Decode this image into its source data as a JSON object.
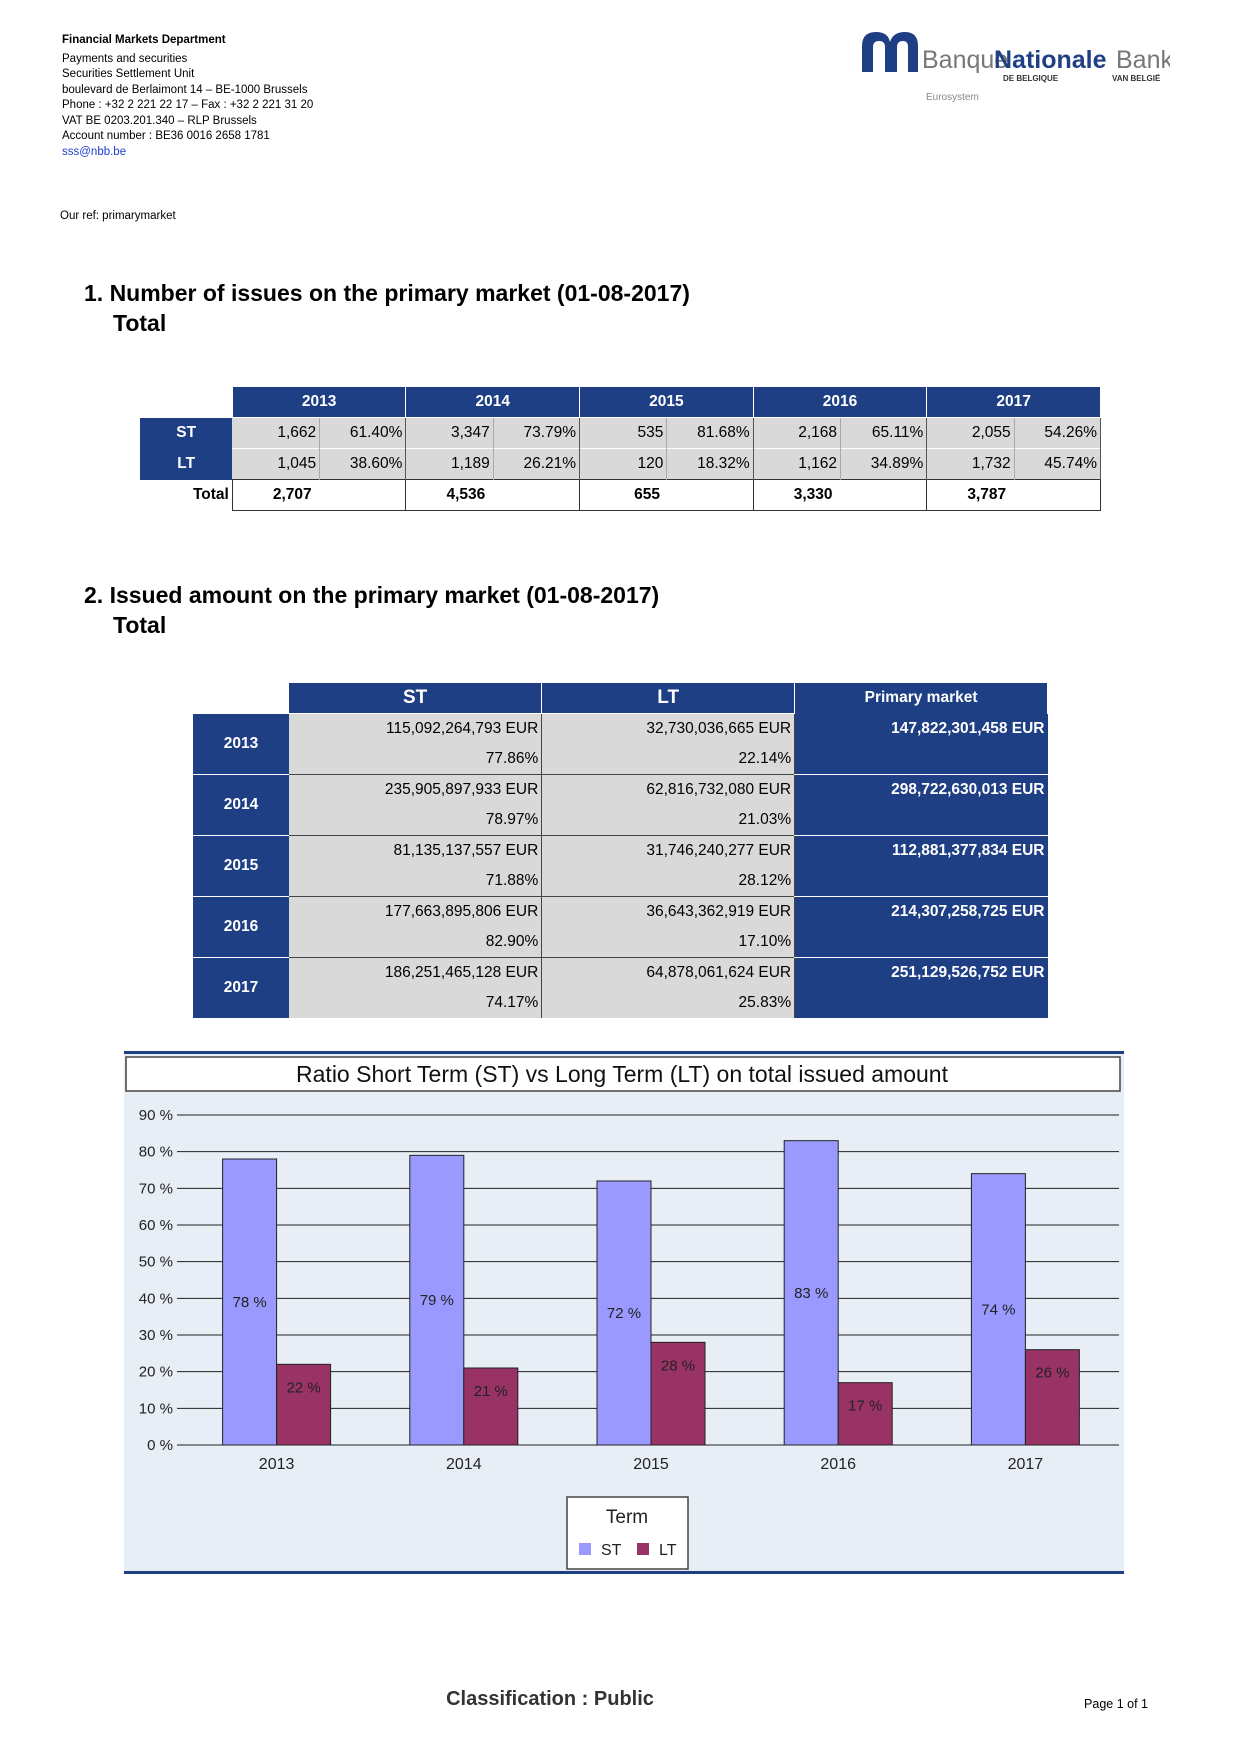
{
  "header": {
    "department": "Financial Markets Department",
    "lines": [
      "Payments and securities",
      "Securities Settlement Unit",
      "boulevard de Berlaimont 14 – BE-1000 Brussels",
      "Phone : +32 2 221 22 17 – Fax : +32 2 221 31 20",
      "VAT BE 0203.201.340 – RLP Brussels",
      "Account number : BE36 0016 2658 1781"
    ],
    "email": "sss@nbb.be"
  },
  "logo": {
    "banque": "Banque",
    "nationale": "Nationale",
    "bank": "Bank",
    "de_belgique": "DE BELGIQUE",
    "van_belgie": "VAN BELGIË",
    "eurosystem": "Eurosystem"
  },
  "ref": "Our ref: primarymarket",
  "section1": {
    "title": "1. Number of issues on the primary market (01-08-2017)",
    "subtitle": "Total",
    "years": [
      "2013",
      "2014",
      "2015",
      "2016",
      "2017"
    ],
    "rows": [
      {
        "label": "ST",
        "cells": [
          [
            "1,662",
            "61.40%"
          ],
          [
            "3,347",
            "73.79%"
          ],
          [
            "535",
            "81.68%"
          ],
          [
            "2,168",
            "65.11%"
          ],
          [
            "2,055",
            "54.26%"
          ]
        ]
      },
      {
        "label": "LT",
        "cells": [
          [
            "1,045",
            "38.60%"
          ],
          [
            "1,189",
            "26.21%"
          ],
          [
            "120",
            "18.32%"
          ],
          [
            "1,162",
            "34.89%"
          ],
          [
            "1,732",
            "45.74%"
          ]
        ]
      }
    ],
    "total_label": "Total",
    "totals": [
      "2,707",
      "4,536",
      "655",
      "3,330",
      "3,787"
    ]
  },
  "section2": {
    "title": "2. Issued amount on the primary market (01-08-2017)",
    "subtitle": "Total",
    "headers": [
      "ST",
      "LT",
      "Primary market"
    ],
    "rows": [
      {
        "year": "2013",
        "st": "115,092,264,793 EUR",
        "st_pct": "77.86%",
        "lt": "32,730,036,665 EUR",
        "lt_pct": "22.14%",
        "pm": "147,822,301,458 EUR"
      },
      {
        "year": "2014",
        "st": "235,905,897,933 EUR",
        "st_pct": "78.97%",
        "lt": "62,816,732,080 EUR",
        "lt_pct": "21.03%",
        "pm": "298,722,630,013 EUR"
      },
      {
        "year": "2015",
        "st": "81,135,137,557 EUR",
        "st_pct": "71.88%",
        "lt": "31,746,240,277 EUR",
        "lt_pct": "28.12%",
        "pm": "112,881,377,834 EUR"
      },
      {
        "year": "2016",
        "st": "177,663,895,806 EUR",
        "st_pct": "82.90%",
        "lt": "36,643,362,919 EUR",
        "lt_pct": "17.10%",
        "pm": "214,307,258,725 EUR"
      },
      {
        "year": "2017",
        "st": "186,251,465,128 EUR",
        "st_pct": "74.17%",
        "lt": "64,878,061,624 EUR",
        "lt_pct": "25.83%",
        "pm": "251,129,526,752 EUR"
      }
    ]
  },
  "chart_data": {
    "type": "bar",
    "title": "Ratio Short Term (ST) vs Long Term (LT) on total issued amount",
    "categories": [
      "2013",
      "2014",
      "2015",
      "2016",
      "2017"
    ],
    "series": [
      {
        "name": "ST",
        "values": [
          78,
          79,
          72,
          83,
          74
        ],
        "labels": [
          "78 %",
          "79 %",
          "72 %",
          "83 %",
          "74 %"
        ],
        "color": "#9999ff"
      },
      {
        "name": "LT",
        "values": [
          22,
          21,
          28,
          17,
          26
        ],
        "labels": [
          "22 %",
          "21 %",
          "28 %",
          "17 %",
          "26 %"
        ],
        "color": "#993366"
      }
    ],
    "ylim": [
      0,
      90
    ],
    "yticks": [
      "0 %",
      "10 %",
      "20 %",
      "30 %",
      "40 %",
      "50 %",
      "60 %",
      "70 %",
      "80 %",
      "90 %"
    ],
    "legend_title": "Term",
    "legend_position": "bottom",
    "grid": true
  },
  "footer": {
    "classification": "Classification : Public",
    "page": "Page 1 of 1"
  }
}
